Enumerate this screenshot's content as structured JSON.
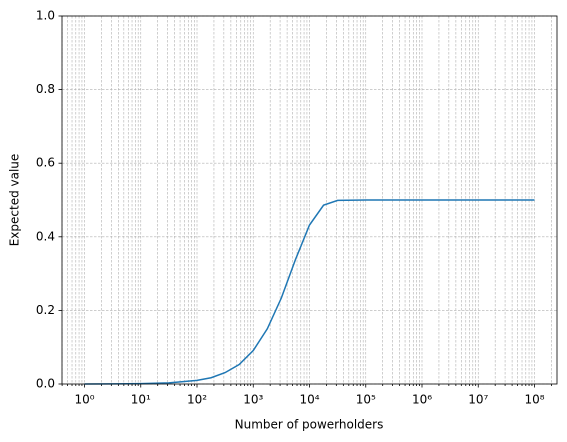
{
  "chart_data": {
    "type": "line",
    "x_label": "Number of powerholders",
    "y_label": "Expected value",
    "x": [
      1,
      3.16,
      10,
      31.6,
      100,
      178,
      316,
      562,
      1000,
      1778,
      3162,
      5623,
      10000,
      17783,
      31623,
      100000,
      1000000,
      10000000,
      100000000
    ],
    "values": [
      0.0001,
      0.0003,
      0.001,
      0.003,
      0.01,
      0.017,
      0.031,
      0.053,
      0.091,
      0.15,
      0.234,
      0.338,
      0.432,
      0.486,
      0.499,
      0.5,
      0.5,
      0.5,
      0.5
    ],
    "color": "#1f77b4",
    "xscale": "log",
    "xlim": [
      0.398,
      251200000
    ],
    "ylim": [
      0,
      1
    ],
    "xticks": [
      {
        "value": 1,
        "label": "10⁰"
      },
      {
        "value": 10,
        "label": "10¹"
      },
      {
        "value": 100,
        "label": "10²"
      },
      {
        "value": 1000,
        "label": "10³"
      },
      {
        "value": 10000,
        "label": "10⁴"
      },
      {
        "value": 100000,
        "label": "10⁵"
      },
      {
        "value": 1000000,
        "label": "10⁶"
      },
      {
        "value": 10000000,
        "label": "10⁷"
      },
      {
        "value": 100000000,
        "label": "10⁸"
      }
    ],
    "xminorticks": [
      0.4,
      0.5,
      0.6,
      0.7,
      0.8,
      0.9,
      2,
      3,
      4,
      5,
      6,
      7,
      8,
      9,
      20,
      30,
      40,
      50,
      60,
      70,
      80,
      90,
      200,
      300,
      400,
      500,
      600,
      700,
      800,
      900,
      2000,
      3000,
      4000,
      5000,
      6000,
      7000,
      8000,
      9000,
      20000,
      30000,
      40000,
      50000,
      60000,
      70000,
      80000,
      90000,
      200000,
      300000,
      400000,
      500000,
      600000,
      700000,
      800000,
      900000,
      2000000,
      3000000,
      4000000,
      5000000,
      6000000,
      7000000,
      8000000,
      9000000,
      20000000,
      30000000,
      40000000,
      50000000,
      60000000,
      70000000,
      80000000,
      90000000,
      200000000
    ],
    "yticks": [
      {
        "value": 0,
        "label": "0.0"
      },
      {
        "value": 0.2,
        "label": "0.2"
      },
      {
        "value": 0.4,
        "label": "0.4"
      },
      {
        "value": 0.6,
        "label": "0.6"
      },
      {
        "value": 0.8,
        "label": "0.8"
      },
      {
        "value": 1,
        "label": "1.0"
      }
    ],
    "grid": true
  }
}
